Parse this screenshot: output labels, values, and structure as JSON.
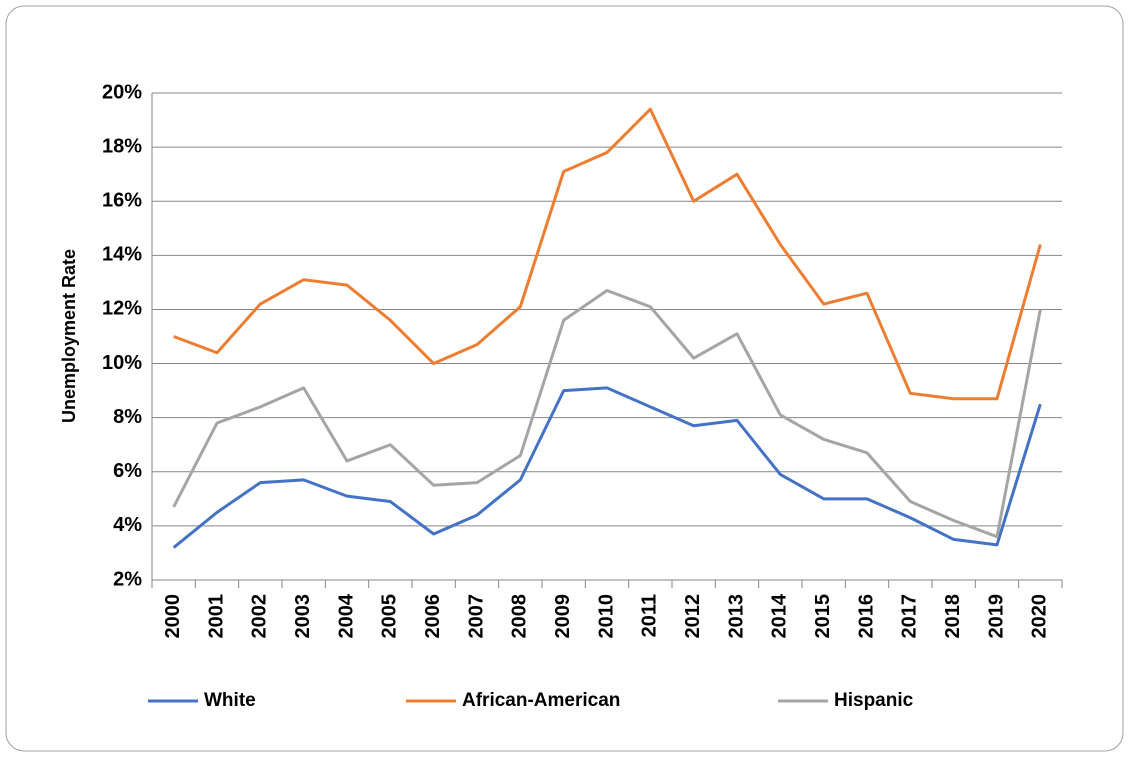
{
  "chart_data": {
    "type": "line",
    "y_label": "Unemployment Rate",
    "categories": [
      "2000",
      "2001",
      "2002",
      "2003",
      "2004",
      "2005",
      "2006",
      "2007",
      "2008",
      "2009",
      "2010",
      "2011",
      "2012",
      "2013",
      "2014",
      "2015",
      "2016",
      "2017",
      "2018",
      "2019",
      "2020"
    ],
    "series": [
      {
        "name": "White",
        "color": "#4472c4",
        "values": [
          3.2,
          4.5,
          5.6,
          5.7,
          5.1,
          4.9,
          3.7,
          4.4,
          5.7,
          9.0,
          9.1,
          8.4,
          7.7,
          7.9,
          5.9,
          5.0,
          5.0,
          4.3,
          3.5,
          3.3,
          8.5
        ]
      },
      {
        "name": "African-American",
        "color": "#ed7d31",
        "values": [
          11.0,
          10.4,
          12.2,
          13.1,
          12.9,
          11.6,
          10.0,
          10.7,
          12.1,
          17.1,
          17.8,
          19.4,
          16.0,
          17.0,
          14.4,
          12.2,
          12.6,
          8.9,
          8.7,
          8.7,
          14.4
        ]
      },
      {
        "name": "Hispanic",
        "color": "#a5a5a5",
        "values": [
          4.7,
          7.8,
          8.4,
          9.1,
          6.4,
          7.0,
          5.5,
          5.6,
          6.6,
          11.6,
          12.7,
          12.1,
          10.2,
          11.1,
          8.1,
          7.2,
          6.7,
          4.9,
          4.2,
          3.6,
          12.0
        ]
      }
    ],
    "ylim": [
      2,
      20
    ],
    "yticks": [
      {
        "value": 2,
        "label": "2%"
      },
      {
        "value": 4,
        "label": "4%"
      },
      {
        "value": 6,
        "label": "6%"
      },
      {
        "value": 8,
        "label": "8%"
      },
      {
        "value": 10,
        "label": "10%"
      },
      {
        "value": 12,
        "label": "12%"
      },
      {
        "value": 14,
        "label": "14%"
      },
      {
        "value": 16,
        "label": "16%"
      },
      {
        "value": 18,
        "label": "18%"
      },
      {
        "value": 20,
        "label": "20%"
      }
    ],
    "grid": true,
    "legend": "bottom"
  }
}
